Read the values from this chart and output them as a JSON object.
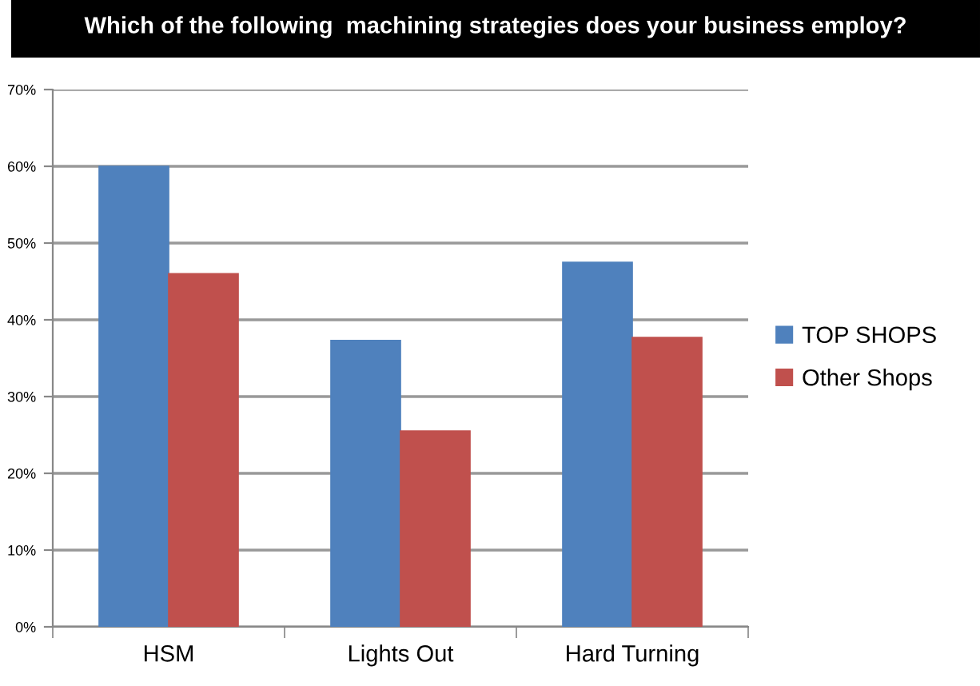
{
  "chart_data": {
    "type": "bar",
    "title": "Which of the following  machining strategies does your business employ?",
    "categories": [
      "HSM",
      "Lights Out",
      "Hard Turning"
    ],
    "series": [
      {
        "name": "TOP SHOPS",
        "color": "#4f81bd",
        "values": [
          60,
          37.3,
          47.5
        ]
      },
      {
        "name": "Other Shops",
        "color": "#c0504d",
        "values": [
          46,
          25.5,
          37.7
        ]
      }
    ],
    "ylim": [
      0,
      70
    ],
    "yticks": [
      {
        "value": 0,
        "label": "0%"
      },
      {
        "value": 10,
        "label": "10%"
      },
      {
        "value": 20,
        "label": "20%"
      },
      {
        "value": 30,
        "label": "30%"
      },
      {
        "value": 40,
        "label": "40%"
      },
      {
        "value": 50,
        "label": "50%"
      },
      {
        "value": 60,
        "label": "60%"
      },
      {
        "value": 70,
        "label": "70%"
      }
    ],
    "grid": "y",
    "legend": "right"
  }
}
